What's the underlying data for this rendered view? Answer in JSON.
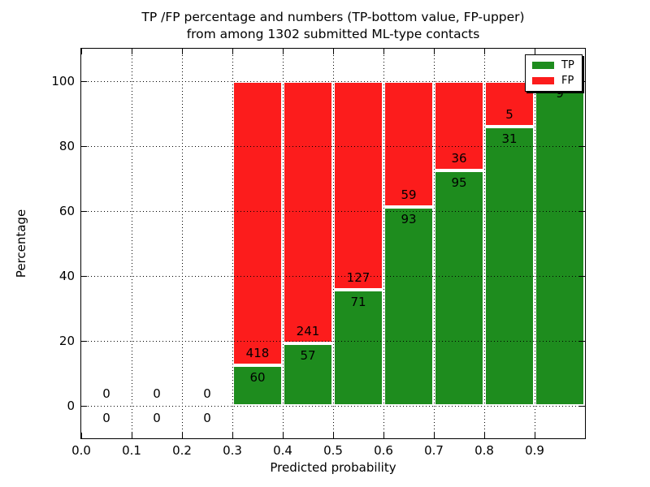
{
  "title": {
    "line1": "TP /FP percentage and numbers (TP-bottom value, FP-upper)",
    "line2": "from among 1302 submitted ML-type contacts"
  },
  "axes": {
    "xlabel": "Predicted probability",
    "ylabel": "Percentage",
    "xtick_labels": [
      "0.0",
      "0.1",
      "0.2",
      "0.3",
      "0.4",
      "0.5",
      "0.6",
      "0.7",
      "0.8",
      "0.9"
    ],
    "ytick_labels": [
      "0",
      "20",
      "40",
      "60",
      "80",
      "100"
    ],
    "ytick_values": [
      0,
      20,
      40,
      60,
      80,
      100
    ],
    "xlim": [
      0.0,
      1.0
    ],
    "ylim": [
      -10,
      110
    ],
    "grid_style": "dotted",
    "grid_color": "#000000"
  },
  "legend": {
    "position": "upper-right",
    "items": [
      {
        "label": "TP",
        "color": "#1e8c1e"
      },
      {
        "label": "FP",
        "color": "#fc1c1c"
      }
    ]
  },
  "chart_data": {
    "type": "bar",
    "stacked": true,
    "normalized_to_percent": true,
    "bin_width": 0.1,
    "categories": [
      "0.0-0.1",
      "0.1-0.2",
      "0.2-0.3",
      "0.3-0.4",
      "0.4-0.5",
      "0.5-0.6",
      "0.6-0.7",
      "0.7-0.8",
      "0.8-0.9",
      "0.9-1.0"
    ],
    "series": [
      {
        "name": "TP",
        "color": "#1e8c1e",
        "counts": [
          0,
          0,
          0,
          60,
          57,
          71,
          93,
          95,
          31,
          9
        ]
      },
      {
        "name": "FP",
        "color": "#fc1c1c",
        "counts": [
          0,
          0,
          0,
          418,
          241,
          127,
          59,
          36,
          5,
          0
        ]
      }
    ],
    "tp_percent_of_bin": [
      0,
      0,
      0,
      12.6,
      19.1,
      35.9,
      61.2,
      72.5,
      86.1,
      100
    ],
    "total_contacts": 1302,
    "title": "TP /FP percentage and numbers (TP-bottom value, FP-upper) from among 1302 submitted ML-type contacts",
    "xlabel": "Predicted probability",
    "ylabel": "Percentage"
  }
}
